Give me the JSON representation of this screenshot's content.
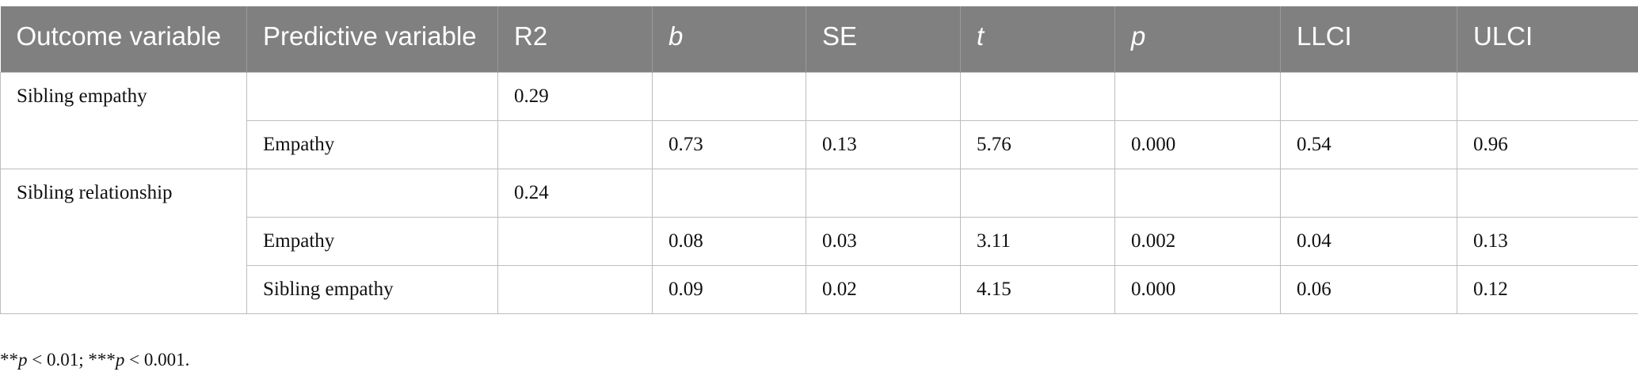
{
  "table": {
    "header": [
      "Outcome variable",
      "Predictive variable",
      "R2",
      "b",
      "SE",
      "t",
      "p",
      "LLCI",
      "ULCI"
    ],
    "groups": [
      {
        "outcome": "Sibling empathy",
        "rows": [
          [
            null,
            "0.29",
            null,
            null,
            null,
            null,
            null,
            null
          ],
          [
            "Empathy",
            null,
            "0.73",
            "0.13",
            "5.76",
            "0.000",
            "0.54",
            "0.96"
          ]
        ]
      },
      {
        "outcome": "Sibling relationship",
        "rows": [
          [
            null,
            "0.24",
            null,
            null,
            null,
            null,
            null,
            null
          ],
          [
            "Empathy",
            null,
            "0.08",
            "0.03",
            "3.11",
            "0.002",
            "0.04",
            "0.13"
          ],
          [
            "Sibling empathy",
            null,
            "0.09",
            "0.02",
            "4.15",
            "0.000",
            "0.06",
            "0.12"
          ]
        ]
      }
    ]
  },
  "footnote": [
    "**",
    "p",
    " < 0.01; ***",
    "p",
    " < 0.001."
  ]
}
